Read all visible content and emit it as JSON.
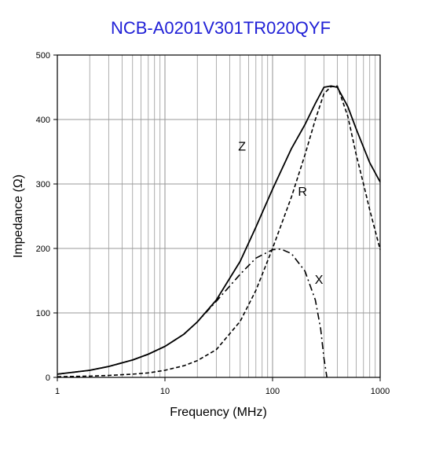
{
  "chart_data": {
    "type": "line",
    "title": "NCB-A0201V301TR020QYF",
    "title_color": "#1f1fd6",
    "xlabel": "Frequency (MHz)",
    "ylabel": "Impedance (Ω)",
    "x_scale": "log",
    "xlim": [
      1,
      1000
    ],
    "ylim": [
      0,
      500
    ],
    "grid": true,
    "x_ticks": [
      1,
      10,
      100,
      1000
    ],
    "x_tick_labels": [
      "1",
      "10",
      "100",
      "1000"
    ],
    "y_ticks": [
      0,
      100,
      200,
      300,
      400,
      500
    ],
    "y_tick_labels": [
      "0",
      "100",
      "200",
      "300",
      "400",
      "500"
    ],
    "series": [
      {
        "name": "Z",
        "style": "solid",
        "color": "#000000",
        "x": [
          1,
          2,
          3,
          5,
          7,
          10,
          15,
          20,
          30,
          50,
          70,
          100,
          150,
          200,
          250,
          300,
          350,
          400,
          500,
          600,
          700,
          800,
          1000
        ],
        "y": [
          5,
          11,
          17,
          27,
          36,
          48,
          67,
          86,
          120,
          180,
          233,
          292,
          355,
          392,
          425,
          450,
          452,
          450,
          420,
          385,
          357,
          333,
          303
        ]
      },
      {
        "name": "R",
        "style": "dashed",
        "color": "#000000",
        "x": [
          1,
          2,
          3,
          5,
          7,
          10,
          15,
          20,
          30,
          50,
          70,
          100,
          150,
          200,
          250,
          300,
          350,
          400,
          500,
          600,
          700,
          800,
          1000
        ],
        "y": [
          1,
          2,
          3,
          5,
          7,
          11,
          18,
          26,
          43,
          87,
          135,
          200,
          280,
          345,
          400,
          440,
          451,
          452,
          405,
          345,
          300,
          260,
          198
        ]
      },
      {
        "name": "X",
        "style": "dashdot",
        "color": "#000000",
        "x": [
          1,
          2,
          3,
          5,
          7,
          10,
          15,
          20,
          30,
          50,
          70,
          100,
          120,
          150,
          200,
          250,
          280,
          300,
          320
        ],
        "y": [
          5,
          11,
          17,
          27,
          36,
          48,
          67,
          86,
          118,
          160,
          185,
          198,
          199,
          192,
          165,
          120,
          75,
          30,
          0
        ]
      }
    ],
    "series_labels": [
      {
        "text": "Z",
        "x": 52,
        "y": 352
      },
      {
        "text": "R",
        "x": 190,
        "y": 282
      },
      {
        "text": "X",
        "x": 270,
        "y": 145
      }
    ]
  }
}
